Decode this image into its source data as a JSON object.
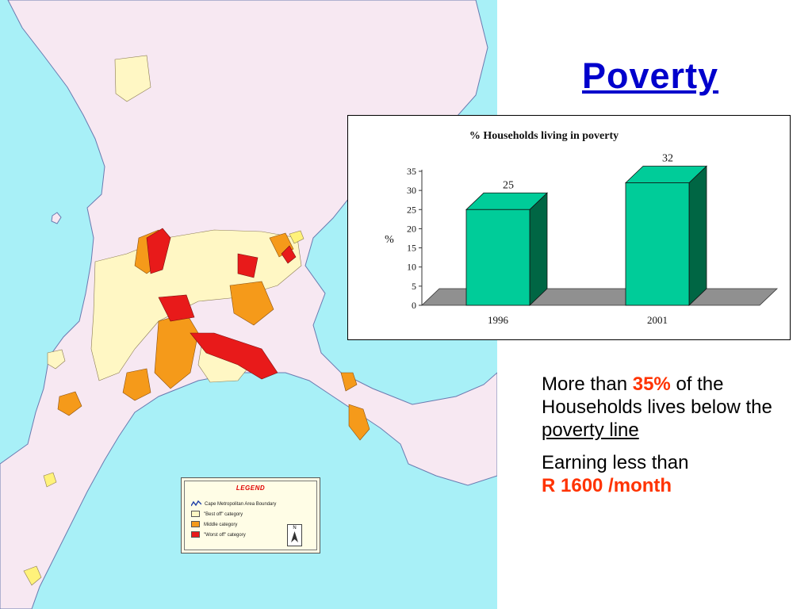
{
  "slide": {
    "title": "Poverty"
  },
  "legend": {
    "title": "LEGEND",
    "items": [
      {
        "label": "Cape Metropolitan Area Boundary",
        "kind": "line",
        "color": "#1f3fa8"
      },
      {
        "label": "\"Best off\" category",
        "kind": "swatch",
        "color": "#fff7c4"
      },
      {
        "label": "Middle category",
        "kind": "swatch",
        "color": "#f59a1a"
      },
      {
        "label": "\"Worst off\" category",
        "kind": "swatch",
        "color": "#e81a1a"
      }
    ],
    "north_label": "N"
  },
  "chart_data": {
    "type": "bar",
    "title": "% Households living in poverty",
    "categories": [
      "1996",
      "2001"
    ],
    "values": [
      25,
      32
    ],
    "data_labels": [
      "25",
      "32"
    ],
    "ylabel": "%",
    "ylim": [
      0,
      35
    ],
    "yticks": [
      "0",
      "5",
      "10",
      "15",
      "20",
      "25",
      "30",
      "35"
    ],
    "bar_color": "#00cc99",
    "bar_side_color": "#006644",
    "floor_color": "#909090",
    "grid": false,
    "style": "3d"
  },
  "text": {
    "p1_before": "More than ",
    "p1_highlight": "35%",
    "p1_after": " of the Households lives below the ",
    "p1_underlined": "poverty line",
    "p2_before": "Earning less than ",
    "p2_highlight": "R 1600 /month"
  },
  "colors": {
    "sea": "#a8f0f7",
    "land": "#f7e8f2",
    "best_off": "#fff7c4",
    "middle": "#f59a1a",
    "worst_off": "#e81a1a",
    "highlight_text": "#ff3300",
    "title_blue": "#0000cc"
  }
}
